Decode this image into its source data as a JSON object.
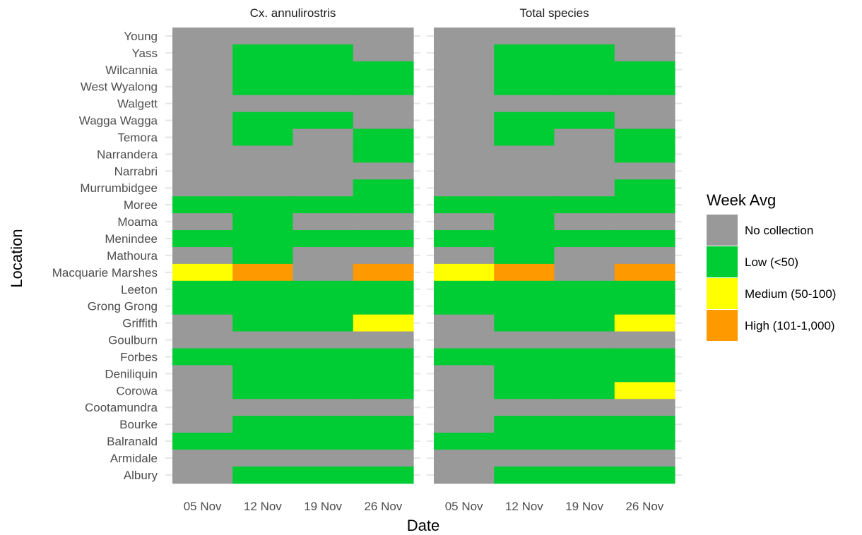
{
  "chart_data": {
    "type": "heatmap",
    "xlabel": "Date",
    "ylabel": "Location",
    "x_categories": [
      "05 Nov",
      "12 Nov",
      "19 Nov",
      "26 Nov"
    ],
    "y_categories": [
      "Young",
      "Yass",
      "Wilcannia",
      "West Wyalong",
      "Walgett",
      "Wagga Wagga",
      "Temora",
      "Narrandera",
      "Narrabri",
      "Murrumbidgee",
      "Moree",
      "Moama",
      "Menindee",
      "Mathoura",
      "Macquarie Marshes",
      "Leeton",
      "Grong Grong",
      "Griffith",
      "Goulburn",
      "Forbes",
      "Deniliquin",
      "Corowa",
      "Cootamundra",
      "Bourke",
      "Balranald",
      "Armidale",
      "Albury"
    ],
    "legend": {
      "title": "Week Avg",
      "placement": "right",
      "levels": [
        {
          "key": "N",
          "label": "No collection",
          "color": "#999999"
        },
        {
          "key": "L",
          "label": "Low (<50)",
          "color": "#00CC33"
        },
        {
          "key": "M",
          "label": "Medium (50-100)",
          "color": "#FFFF00"
        },
        {
          "key": "H",
          "label": "High (101-1,000)",
          "color": "#FF9900"
        }
      ]
    },
    "panels": [
      {
        "title": "Cx. annulirostris",
        "rows": [
          [
            "N",
            "N",
            "N",
            "N"
          ],
          [
            "N",
            "L",
            "L",
            "N"
          ],
          [
            "N",
            "L",
            "L",
            "L"
          ],
          [
            "N",
            "L",
            "L",
            "L"
          ],
          [
            "N",
            "N",
            "N",
            "N"
          ],
          [
            "N",
            "L",
            "L",
            "N"
          ],
          [
            "N",
            "L",
            "N",
            "L"
          ],
          [
            "N",
            "N",
            "N",
            "L"
          ],
          [
            "N",
            "N",
            "N",
            "N"
          ],
          [
            "N",
            "N",
            "N",
            "L"
          ],
          [
            "L",
            "L",
            "L",
            "L"
          ],
          [
            "N",
            "L",
            "N",
            "N"
          ],
          [
            "L",
            "L",
            "L",
            "L"
          ],
          [
            "N",
            "L",
            "N",
            "N"
          ],
          [
            "M",
            "H",
            "N",
            "H"
          ],
          [
            "L",
            "L",
            "L",
            "L"
          ],
          [
            "L",
            "L",
            "L",
            "L"
          ],
          [
            "N",
            "L",
            "L",
            "M"
          ],
          [
            "N",
            "N",
            "N",
            "N"
          ],
          [
            "L",
            "L",
            "L",
            "L"
          ],
          [
            "N",
            "L",
            "L",
            "L"
          ],
          [
            "N",
            "L",
            "L",
            "L"
          ],
          [
            "N",
            "N",
            "N",
            "N"
          ],
          [
            "N",
            "L",
            "L",
            "L"
          ],
          [
            "L",
            "L",
            "L",
            "L"
          ],
          [
            "N",
            "N",
            "N",
            "N"
          ],
          [
            "N",
            "L",
            "L",
            "L"
          ]
        ]
      },
      {
        "title": "Total species",
        "rows": [
          [
            "N",
            "N",
            "N",
            "N"
          ],
          [
            "N",
            "L",
            "L",
            "N"
          ],
          [
            "N",
            "L",
            "L",
            "L"
          ],
          [
            "N",
            "L",
            "L",
            "L"
          ],
          [
            "N",
            "N",
            "N",
            "N"
          ],
          [
            "N",
            "L",
            "L",
            "N"
          ],
          [
            "N",
            "L",
            "N",
            "L"
          ],
          [
            "N",
            "N",
            "N",
            "L"
          ],
          [
            "N",
            "N",
            "N",
            "N"
          ],
          [
            "N",
            "N",
            "N",
            "L"
          ],
          [
            "L",
            "L",
            "L",
            "L"
          ],
          [
            "N",
            "L",
            "N",
            "N"
          ],
          [
            "L",
            "L",
            "L",
            "L"
          ],
          [
            "N",
            "L",
            "N",
            "N"
          ],
          [
            "M",
            "H",
            "N",
            "H"
          ],
          [
            "L",
            "L",
            "L",
            "L"
          ],
          [
            "L",
            "L",
            "L",
            "L"
          ],
          [
            "N",
            "L",
            "L",
            "M"
          ],
          [
            "N",
            "N",
            "N",
            "N"
          ],
          [
            "L",
            "L",
            "L",
            "L"
          ],
          [
            "N",
            "L",
            "L",
            "L"
          ],
          [
            "N",
            "L",
            "L",
            "M"
          ],
          [
            "N",
            "N",
            "N",
            "N"
          ],
          [
            "N",
            "L",
            "L",
            "L"
          ],
          [
            "L",
            "L",
            "L",
            "L"
          ],
          [
            "N",
            "N",
            "N",
            "N"
          ],
          [
            "N",
            "L",
            "L",
            "L"
          ]
        ]
      }
    ]
  }
}
